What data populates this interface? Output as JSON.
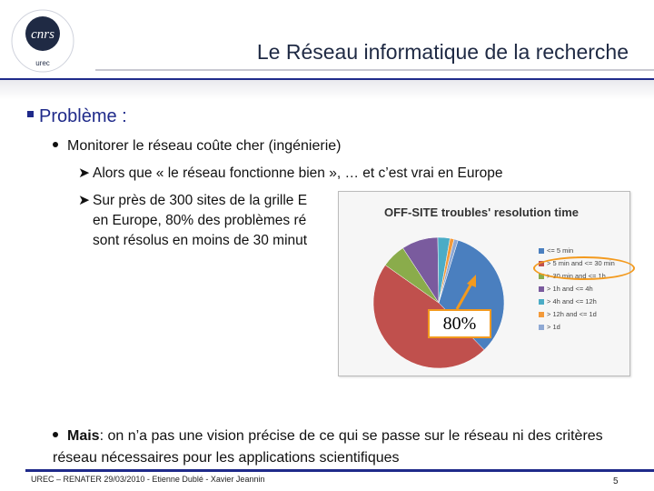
{
  "header": {
    "logo_text": "cnrs",
    "logo_subtext": "urec",
    "title": "Le Réseau informatique de la recherche"
  },
  "body": {
    "heading": "Problème :",
    "point1": "Monitorer le réseau coûte cher (ingénierie)",
    "sub1": "Alors que « le réseau fonctionne bien », … et c’est vrai en Europe",
    "sub2_line1": "Sur près de 300 sites de la grille E",
    "sub2_line2": "en Europe, 80% des problèmes ré",
    "sub2_line3": "sont résolus en moins de 30 minut",
    "point2_bold": "Mais",
    "point2_rest": ": on n’a pas une vision précise de ce qui se passe sur le réseau ni des critères réseau nécessaires pour les applications scientifiques",
    "callout": "80%"
  },
  "chart_data": {
    "type": "pie",
    "title": "OFF-SITE troubles' resolution time",
    "categories": [
      "<= 5 min",
      "> 5 min and <= 30 min",
      "> 30 min and <= 1h",
      "> 1h and <= 4h",
      "> 4h and <= 12h",
      "> 12h and <= 1d",
      "> 1d"
    ],
    "values": [
      33,
      47,
      6,
      9,
      3,
      1,
      1
    ],
    "colors": [
      "#4a7fbf",
      "#c0504d",
      "#8aac4b",
      "#7a5b9e",
      "#4bacc6",
      "#f39a3a",
      "#8fa9d4"
    ],
    "highlight": "80%"
  },
  "footer": {
    "text": "UREC – RENATER 29/03/2010 - Etienne Dublé - Xavier Jeannin",
    "page": "5"
  }
}
